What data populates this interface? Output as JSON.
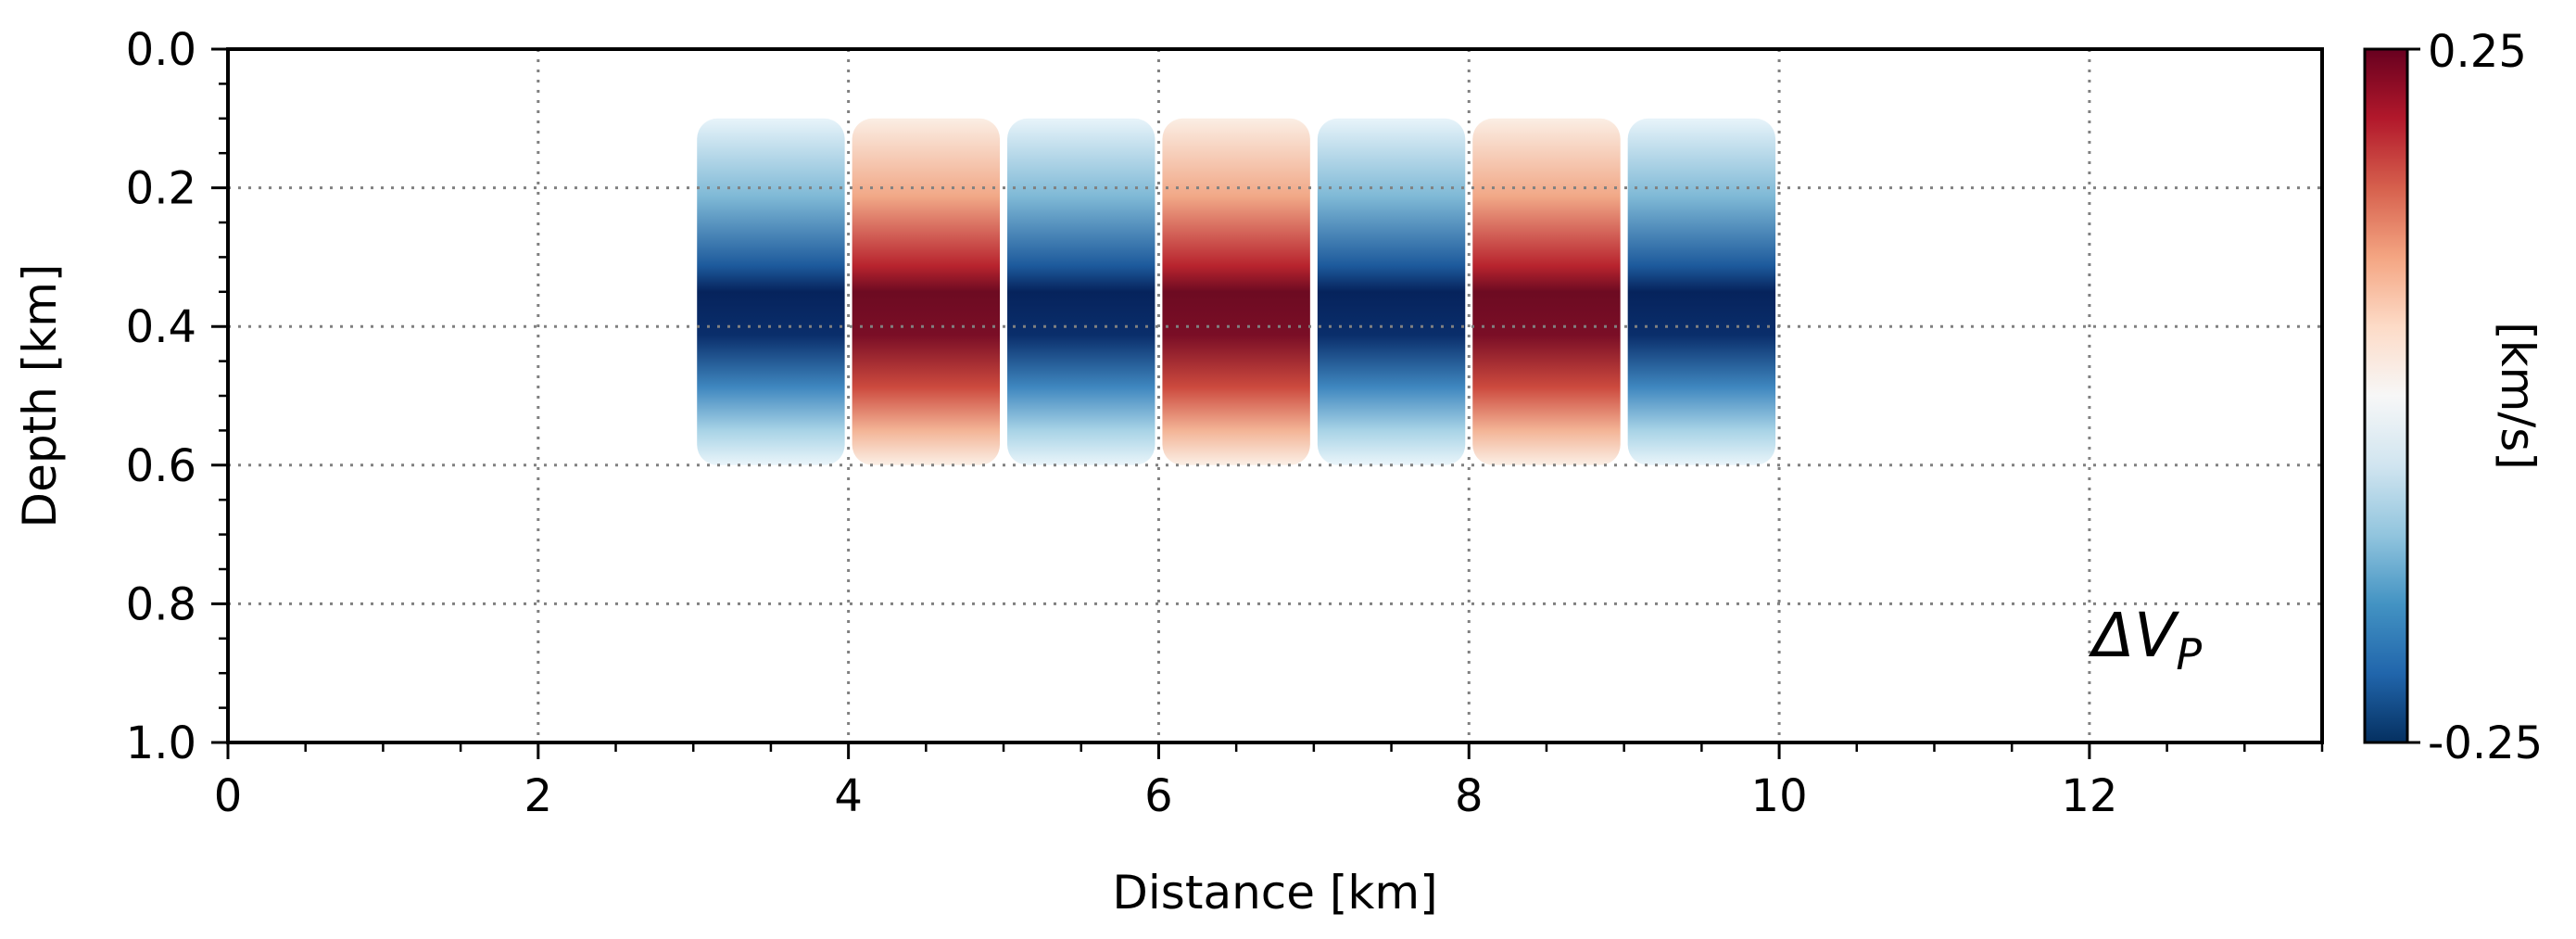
{
  "chart_data": {
    "type": "heatmap",
    "title": "",
    "xlabel": "Distance [km]",
    "ylabel": "Depth [km]",
    "xlim": [
      0,
      13.5
    ],
    "ylim": [
      1.0,
      0.0
    ],
    "x_ticks": [
      "0",
      "2",
      "4",
      "6",
      "8",
      "10",
      "12"
    ],
    "y_ticks": [
      "0.0",
      "0.2",
      "0.4",
      "0.6",
      "0.8",
      "1.0"
    ],
    "grid": true,
    "annotation": {
      "base": "ΔV",
      "subscript": "P"
    },
    "colorbar": {
      "label": "[km/s]",
      "max_label": "0.25",
      "min_label": "-0.25",
      "colormap": "RdBu_r",
      "vmin": -0.25,
      "vmax": 0.25
    },
    "anomaly": {
      "description_values": "alternating velocity perturbation blocks",
      "x_range": [
        3.0,
        10.0
      ],
      "depth_range": [
        0.1,
        0.6
      ],
      "peak_depth": 0.35,
      "blocks": [
        {
          "x0": 3.0,
          "x1": 4.0,
          "peak": -0.25
        },
        {
          "x0": 4.0,
          "x1": 5.0,
          "peak": 0.25
        },
        {
          "x0": 5.0,
          "x1": 6.0,
          "peak": -0.25
        },
        {
          "x0": 6.0,
          "x1": 7.0,
          "peak": 0.25
        },
        {
          "x0": 7.0,
          "x1": 8.0,
          "peak": -0.25
        },
        {
          "x0": 8.0,
          "x1": 9.0,
          "peak": 0.25
        },
        {
          "x0": 9.0,
          "x1": 10.0,
          "peak": -0.25
        }
      ]
    }
  }
}
